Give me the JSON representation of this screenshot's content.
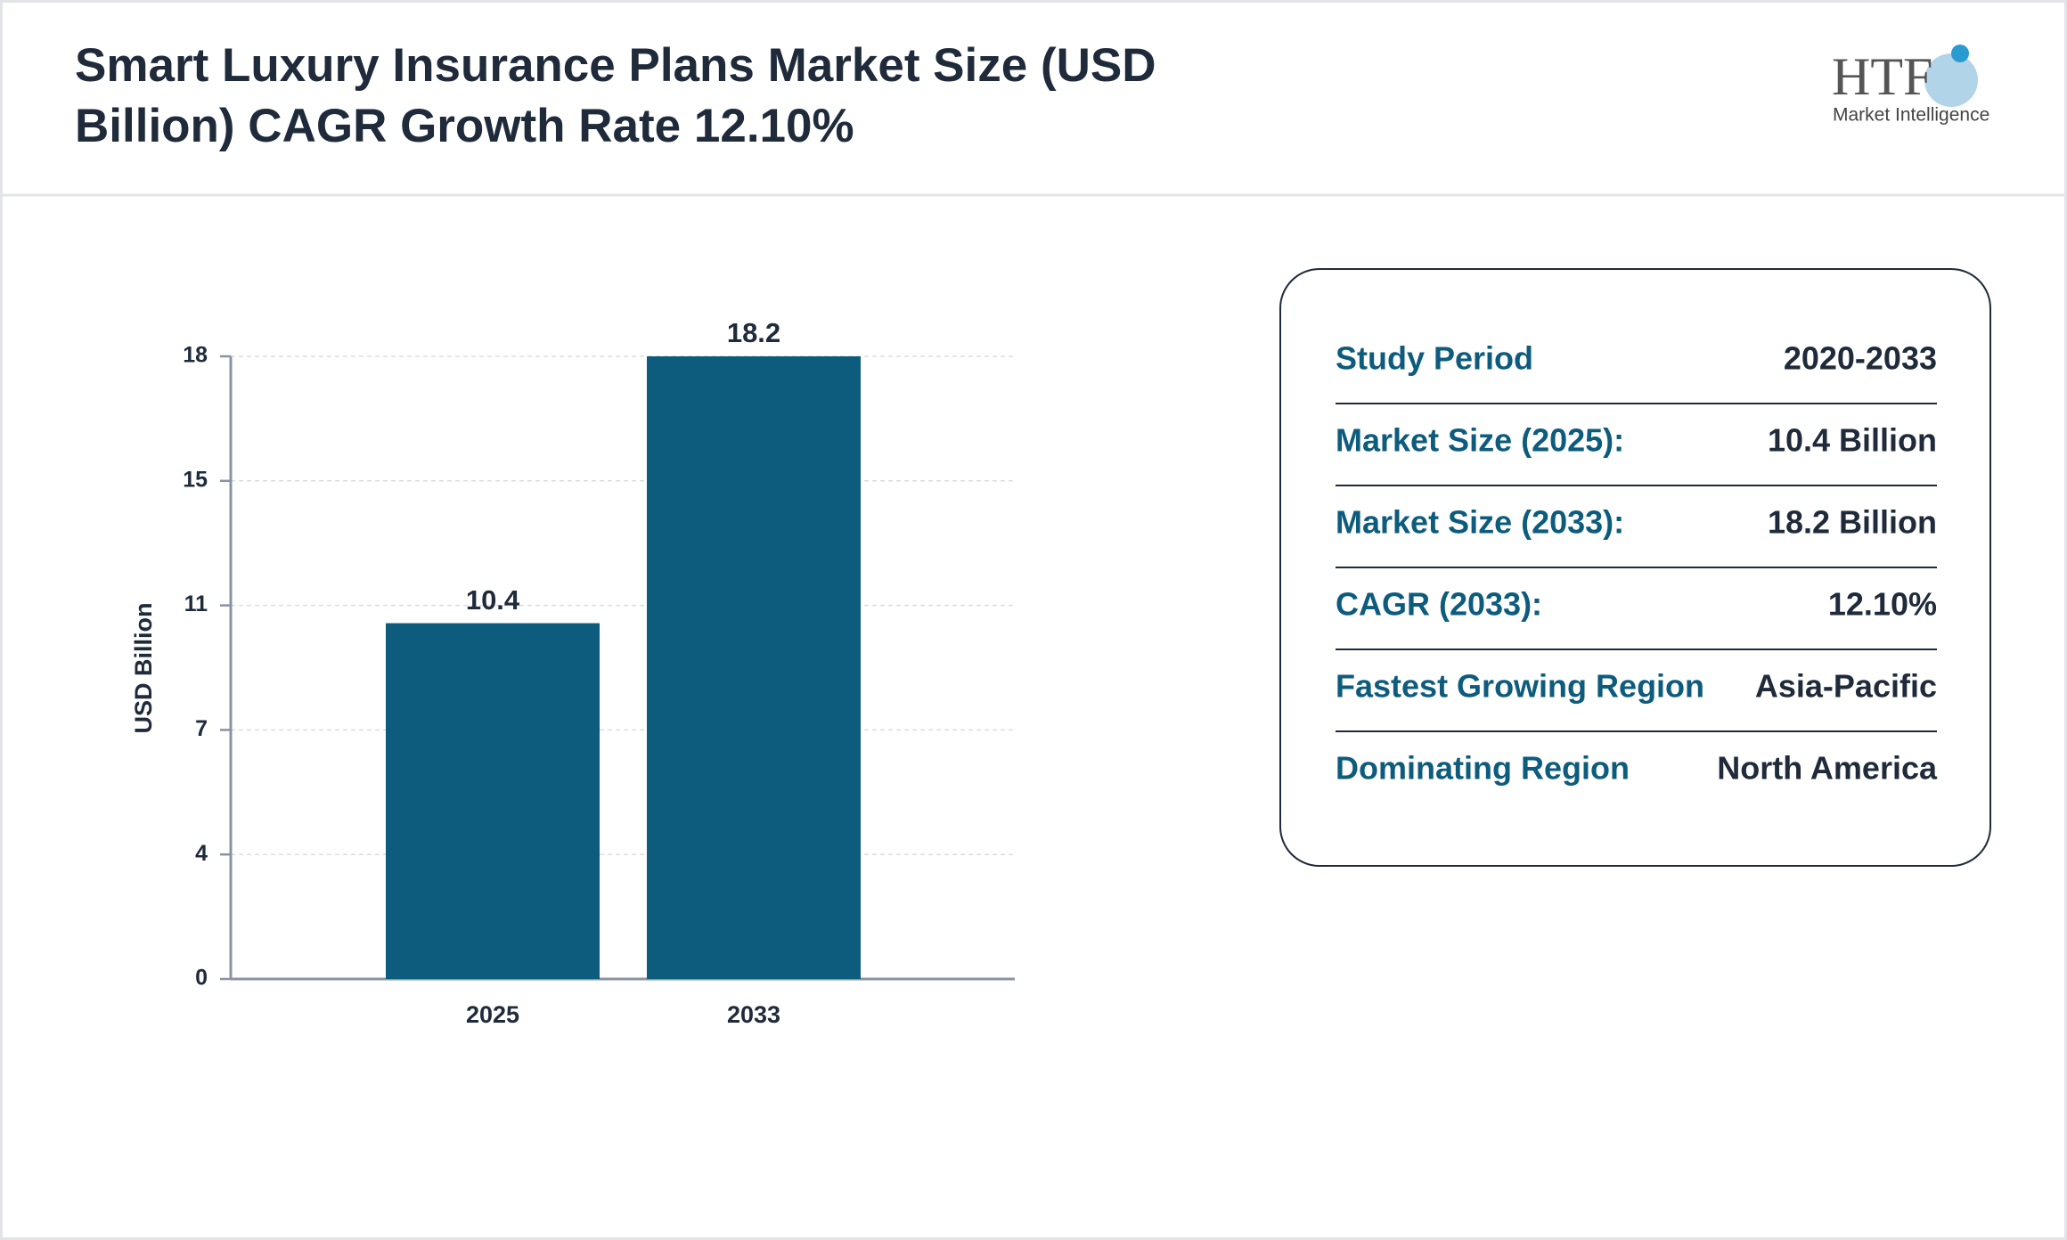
{
  "chart_data": {
    "type": "bar",
    "title": "Smart Luxury Insurance Plans Market Size (USD Billion) CAGR Growth Rate 12.10%",
    "y_label": "USD Billion",
    "categories": [
      "2025",
      "2033"
    ],
    "values": [
      10.4,
      18.2
    ],
    "color": "#0d5c7d",
    "ylim": [
      0,
      18.2
    ],
    "yticks": [
      0,
      {
        "value": 3.64,
        "label": "4"
      },
      {
        "value": 7.28,
        "label": "7"
      },
      {
        "value": 10.92,
        "label": "11"
      },
      {
        "value": 14.56,
        "label": "15"
      },
      {
        "value": 18.2,
        "label": "18"
      }
    ],
    "grid": true
  },
  "logo": {
    "mark": "HTF",
    "text": "Market Intelligence"
  },
  "info_table": {
    "rows": [
      [
        "Study Period",
        "2020-2033"
      ],
      [
        "Market Size (2025):",
        "10.4 Billion"
      ],
      [
        "Market Size (2033):",
        "18.2 Billion"
      ],
      [
        "CAGR (2033):",
        "12.10%"
      ],
      [
        "Fastest Growing Region",
        "Asia-Pacific"
      ],
      [
        "Dominating Region",
        "North America"
      ]
    ]
  }
}
